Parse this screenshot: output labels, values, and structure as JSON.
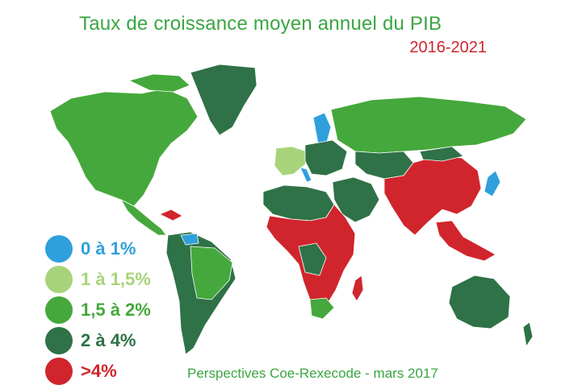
{
  "title": "Taux de croissance moyen annuel du PIB",
  "subtitle": "2016-2021",
  "source": "Perspectives Coe-Rexecode - mars 2017",
  "colors": {
    "title": "#3aa541",
    "subtitle": "#d0252c",
    "c0_1": "#2fa0dc",
    "c1_15": "#a7d47a",
    "c15_2": "#45a83c",
    "c2_4": "#2f7247",
    "c4plus": "#d0252c"
  },
  "legend": [
    {
      "label": "0 à 1%",
      "color": "#2fa0dc"
    },
    {
      "label": "1 à 1,5%",
      "color": "#a7d47a"
    },
    {
      "label": "1,5 à 2%",
      "color": "#45a83c"
    },
    {
      "label": "2 à 4%",
      "color": "#2f7247"
    },
    {
      "label": ">4%",
      "color": "#d0252c"
    }
  ]
}
